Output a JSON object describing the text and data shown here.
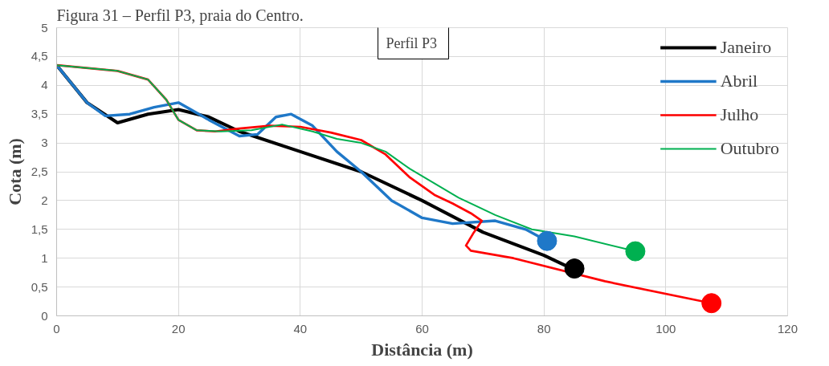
{
  "chart_data": {
    "type": "line",
    "title": "Figura 31 – Perfil P3, praia do Centro.",
    "xlabel": "Distância (m)",
    "ylabel": "Cota (m)",
    "annotations": [
      "Perfil  P3"
    ],
    "xlim": [
      0,
      120
    ],
    "xticks": [
      0,
      20,
      40,
      60,
      80,
      100,
      120
    ],
    "ylim": [
      0,
      5
    ],
    "yticks": [
      0,
      {
        "value": 0.5,
        "label": "0,5"
      },
      1,
      {
        "value": 1.5,
        "label": "1,5"
      },
      2,
      {
        "value": 2.5,
        "label": "2,5"
      },
      3,
      {
        "value": 3.5,
        "label": "3,5"
      },
      4,
      {
        "value": 4.5,
        "label": "4,5"
      },
      5
    ],
    "grid": true,
    "legend": "top right",
    "line_style": "solid",
    "series": [
      {
        "name": "Janeiro",
        "color": "#000000",
        "x": [
          0,
          5,
          10,
          15,
          20,
          25,
          30,
          40,
          50,
          60,
          70,
          80,
          85
        ],
        "values": [
          4.35,
          3.7,
          3.35,
          3.5,
          3.58,
          3.45,
          3.2,
          2.85,
          2.5,
          2.0,
          1.45,
          1.05,
          0.8
        ]
      },
      {
        "name": "Abril",
        "color": "#1f78c8",
        "x": [
          0,
          5,
          8,
          12,
          16,
          20,
          25,
          30,
          33,
          36,
          38.5,
          42,
          46,
          50,
          55,
          60,
          65,
          72,
          77,
          80.5
        ],
        "values": [
          4.35,
          3.7,
          3.47,
          3.5,
          3.62,
          3.7,
          3.4,
          3.12,
          3.15,
          3.45,
          3.5,
          3.3,
          2.85,
          2.5,
          2.0,
          1.7,
          1.6,
          1.65,
          1.5,
          1.3
        ]
      },
      {
        "name": "Julho",
        "color": "#ff0000",
        "x": [
          0,
          10,
          15,
          18,
          20,
          23,
          26,
          30,
          35,
          40,
          45,
          50,
          54,
          58,
          62,
          65,
          68,
          69.8,
          68.5,
          67.2,
          68,
          75,
          90,
          107.5
        ],
        "values": [
          4.35,
          4.25,
          4.1,
          3.75,
          3.4,
          3.22,
          3.2,
          3.25,
          3.3,
          3.28,
          3.18,
          3.05,
          2.8,
          2.4,
          2.1,
          1.95,
          1.78,
          1.65,
          1.45,
          1.22,
          1.13,
          1.0,
          0.6,
          0.22
        ]
      },
      {
        "name": "Outubro",
        "color": "#00b050",
        "x": [
          0,
          10,
          15,
          18,
          20,
          23,
          27,
          32,
          37,
          42,
          46,
          50,
          54,
          58,
          62,
          66,
          72,
          78,
          85,
          95
        ],
        "values": [
          4.35,
          4.25,
          4.1,
          3.75,
          3.4,
          3.22,
          3.2,
          3.22,
          3.32,
          3.2,
          3.07,
          3.0,
          2.85,
          2.55,
          2.3,
          2.05,
          1.75,
          1.5,
          1.38,
          1.12
        ]
      },
      {
        "type": "scatter",
        "marker": "circle",
        "color": "#1f78c8",
        "x": [
          80.5
        ],
        "values": [
          1.3
        ]
      },
      {
        "type": "scatter",
        "marker": "circle",
        "color": "#000000",
        "x": [
          85
        ],
        "values": [
          0.82
        ]
      },
      {
        "type": "scatter",
        "marker": "circle",
        "color": "#00b050",
        "x": [
          95
        ],
        "values": [
          1.12
        ]
      },
      {
        "type": "scatter",
        "marker": "circle",
        "color": "#ff0000",
        "x": [
          107.5
        ],
        "values": [
          0.22
        ]
      }
    ]
  }
}
